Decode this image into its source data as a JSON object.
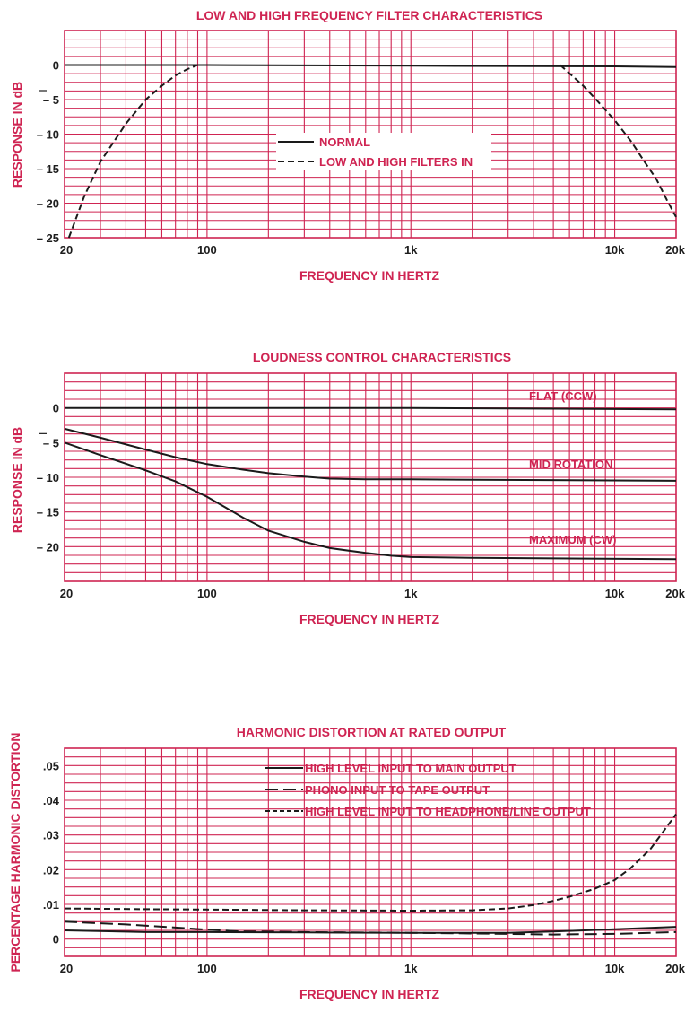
{
  "chart_data": [
    {
      "type": "line",
      "title": "LOW AND HIGH FREQUENCY FILTER CHARACTERISTICS",
      "xlabel": "FREQUENCY IN HERTZ",
      "ylabel": "RESPONSE IN dB",
      "xscale": "log",
      "xlim": [
        20,
        20000
      ],
      "ylim": [
        -25,
        5
      ],
      "xticks": [
        {
          "value": 20,
          "label": "20"
        },
        {
          "value": 100,
          "label": "100"
        },
        {
          "value": 1000,
          "label": "1k"
        },
        {
          "value": 10000,
          "label": "10k"
        },
        {
          "value": 20000,
          "label": "20k"
        }
      ],
      "yticks": [
        {
          "value": 0,
          "label": "0"
        },
        {
          "value": -5,
          "label": "– 5"
        },
        {
          "value": -10,
          "label": "– 10"
        },
        {
          "value": -15,
          "label": "– 15"
        },
        {
          "value": -20,
          "label": "– 20"
        },
        {
          "value": -25,
          "label": "– 25"
        }
      ],
      "legend_position": "center",
      "series": [
        {
          "name": "NORMAL",
          "style": "solid",
          "label_mode": "legend",
          "x": [
            20,
            100,
            1000,
            10000,
            20000
          ],
          "y": [
            0,
            0,
            -0.1,
            -0.2,
            -0.3
          ]
        },
        {
          "name": "LOW AND HIGH FILTERS IN",
          "style": "dashed",
          "label_mode": "legend",
          "segments": [
            {
              "x": [
                21,
                25,
                30,
                40,
                50,
                60,
                70,
                80,
                90
              ],
              "y": [
                -25,
                -19,
                -14,
                -8.5,
                -5,
                -3,
                -1.5,
                -0.6,
                0
              ]
            },
            {
              "x": [
                5400,
                6000,
                7000,
                8000,
                10000,
                12000,
                14000,
                16000,
                18000,
                20000
              ],
              "y": [
                0,
                -1.2,
                -3,
                -4.8,
                -8,
                -11,
                -14,
                -16.5,
                -19.5,
                -22
              ]
            }
          ]
        }
      ]
    },
    {
      "type": "line",
      "title": "LOUDNESS CONTROL CHARACTERISTICS",
      "xlabel": "FREQUENCY IN HERTZ",
      "ylabel": "RESPONSE IN dB",
      "xscale": "log",
      "xlim": [
        20,
        20000
      ],
      "ylim": [
        -25,
        5
      ],
      "xticks": [
        {
          "value": 20,
          "label": "20"
        },
        {
          "value": 100,
          "label": "100"
        },
        {
          "value": 1000,
          "label": "1k"
        },
        {
          "value": 10000,
          "label": "10k"
        },
        {
          "value": 20000,
          "label": "20k"
        }
      ],
      "yticks": [
        {
          "value": 0,
          "label": "0"
        },
        {
          "value": -5,
          "label": "– 5"
        },
        {
          "value": -10,
          "label": "– 10"
        },
        {
          "value": -15,
          "label": "– 15"
        },
        {
          "value": -20,
          "label": "– 20"
        }
      ],
      "series": [
        {
          "name": "FLAT (CCW)",
          "style": "solid",
          "label_mode": "inline",
          "x": [
            20,
            1000,
            20000
          ],
          "y": [
            0,
            0,
            -0.2
          ]
        },
        {
          "name": "MID ROTATION",
          "style": "solid",
          "label_mode": "inline",
          "x": [
            20,
            30,
            50,
            70,
            100,
            150,
            200,
            300,
            400,
            600,
            1000,
            20000
          ],
          "y": [
            -3,
            -4.3,
            -6,
            -7.1,
            -8.1,
            -8.9,
            -9.4,
            -9.9,
            -10.2,
            -10.3,
            -10.3,
            -10.5
          ]
        },
        {
          "name": "MAXIMUM (CW)",
          "style": "solid",
          "label_mode": "inline",
          "x": [
            20,
            30,
            50,
            70,
            100,
            150,
            200,
            300,
            400,
            600,
            800,
            1000,
            2000,
            20000
          ],
          "y": [
            -5,
            -6.8,
            -9,
            -10.6,
            -12.8,
            -15.8,
            -17.7,
            -19.3,
            -20.2,
            -20.9,
            -21.3,
            -21.5,
            -21.6,
            -21.8
          ]
        }
      ]
    },
    {
      "type": "line",
      "title": "HARMONIC DISTORTION AT RATED OUTPUT",
      "xlabel": "FREQUENCY IN HERTZ",
      "ylabel": "PERCENTAGE HARMONIC DISTORTION",
      "xscale": "log",
      "xlim": [
        20,
        20000
      ],
      "ylim": [
        -0.005,
        0.055
      ],
      "xticks": [
        {
          "value": 20,
          "label": "20"
        },
        {
          "value": 100,
          "label": "100"
        },
        {
          "value": 1000,
          "label": "1k"
        },
        {
          "value": 10000,
          "label": "10k"
        },
        {
          "value": 20000,
          "label": "20k"
        }
      ],
      "yticks": [
        {
          "value": 0.05,
          "label": ".05"
        },
        {
          "value": 0.04,
          "label": ".04"
        },
        {
          "value": 0.03,
          "label": ".03"
        },
        {
          "value": 0.02,
          "label": ".02"
        },
        {
          "value": 0.01,
          "label": ".01"
        },
        {
          "value": 0,
          "label": "0"
        }
      ],
      "legend_position": "top-right",
      "series": [
        {
          "name": "HIGH LEVEL INPUT TO MAIN OUTPUT",
          "style": "solid",
          "label_mode": "legend",
          "x": [
            20,
            50,
            100,
            300,
            1000,
            3000,
            5000,
            10000,
            20000
          ],
          "y": [
            0.0025,
            0.002,
            0.002,
            0.0019,
            0.0018,
            0.0018,
            0.0022,
            0.0028,
            0.0035
          ]
        },
        {
          "name": "PHONO INPUT TO TAPE OUTPUT",
          "style": "longdash",
          "label_mode": "legend",
          "x": [
            20,
            40,
            70,
            100,
            150,
            300,
            1000,
            3000,
            5000,
            10000,
            20000
          ],
          "y": [
            0.005,
            0.0042,
            0.0033,
            0.0027,
            0.0022,
            0.002,
            0.0018,
            0.0015,
            0.0013,
            0.0015,
            0.002
          ]
        },
        {
          "name": "HIGH LEVEL INPUT TO HEADPHONE/LINE OUTPUT",
          "style": "dashed",
          "label_mode": "legend",
          "x": [
            20,
            50,
            100,
            300,
            1000,
            2000,
            3000,
            4000,
            5000,
            6000,
            8000,
            10000,
            12000,
            15000,
            20000
          ],
          "y": [
            0.0088,
            0.0086,
            0.0085,
            0.0083,
            0.0082,
            0.0083,
            0.0088,
            0.0098,
            0.011,
            0.0122,
            0.0145,
            0.017,
            0.0205,
            0.026,
            0.036
          ]
        }
      ]
    }
  ]
}
